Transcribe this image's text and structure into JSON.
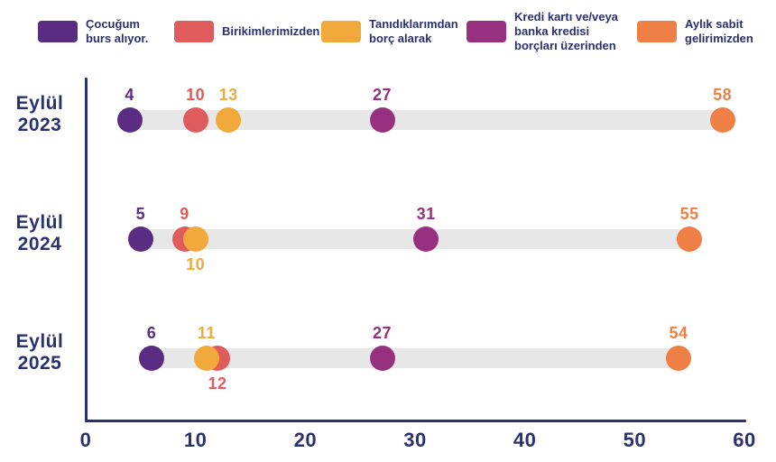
{
  "colors": {
    "navy": "#2a3170",
    "track": "#e8e7e8",
    "purple": "#5b2d82",
    "red": "#e05c5c",
    "yellow": "#f2a93c",
    "magenta": "#97317f",
    "orange": "#ee7f45"
  },
  "legend": {
    "items": [
      {
        "lines": [
          "Çocuğum",
          "burs alıyor."
        ],
        "color": "#5b2d82"
      },
      {
        "lines": [
          "Birikimlerimizden"
        ],
        "color": "#e05c5c"
      },
      {
        "lines": [
          "Tanıdıklarımdan",
          "borç alarak"
        ],
        "color": "#f2a93c"
      },
      {
        "lines": [
          "Kredi kartı ve/veya",
          "banka kredisi",
          "borçları üzerinden"
        ],
        "color": "#97317f"
      },
      {
        "lines": [
          "Aylık sabit",
          "gelirimizden"
        ],
        "color": "#ee7f45"
      }
    ]
  },
  "chart_data": {
    "type": "scatter",
    "title": "",
    "categories": [
      "Eylül 2023",
      "Eylül 2024",
      "Eylül 2025"
    ],
    "series": [
      {
        "name": "Çocuğum burs alıyor.",
        "color": "#5b2d82",
        "values": [
          4,
          5,
          6
        ]
      },
      {
        "name": "Birikimlerimizden",
        "color": "#e05c5c",
        "values": [
          10,
          9,
          12
        ]
      },
      {
        "name": "Tanıdıklarımdan borç alarak",
        "color": "#f2a93c",
        "values": [
          13,
          10,
          11
        ]
      },
      {
        "name": "Kredi kartı ve/veya banka kredisi borçları üzerinden",
        "color": "#97317f",
        "values": [
          27,
          31,
          27
        ]
      },
      {
        "name": "Aylık sabit gelirimizden",
        "color": "#ee7f45",
        "values": [
          58,
          55,
          54
        ]
      }
    ],
    "x_axis": {
      "range": [
        0,
        60
      ],
      "tick_values": [
        0,
        10,
        20,
        30,
        40,
        50,
        60
      ],
      "ticks": [
        "0",
        "10",
        "20",
        "30",
        "40",
        "50",
        "60"
      ]
    },
    "label_positions": [
      [
        "above",
        "above",
        "above",
        "above",
        "above"
      ],
      [
        "above",
        "above",
        "below",
        "above",
        "above"
      ],
      [
        "above",
        "below",
        "above",
        "above",
        "above"
      ]
    ],
    "legend_position": "top",
    "grid": false
  }
}
